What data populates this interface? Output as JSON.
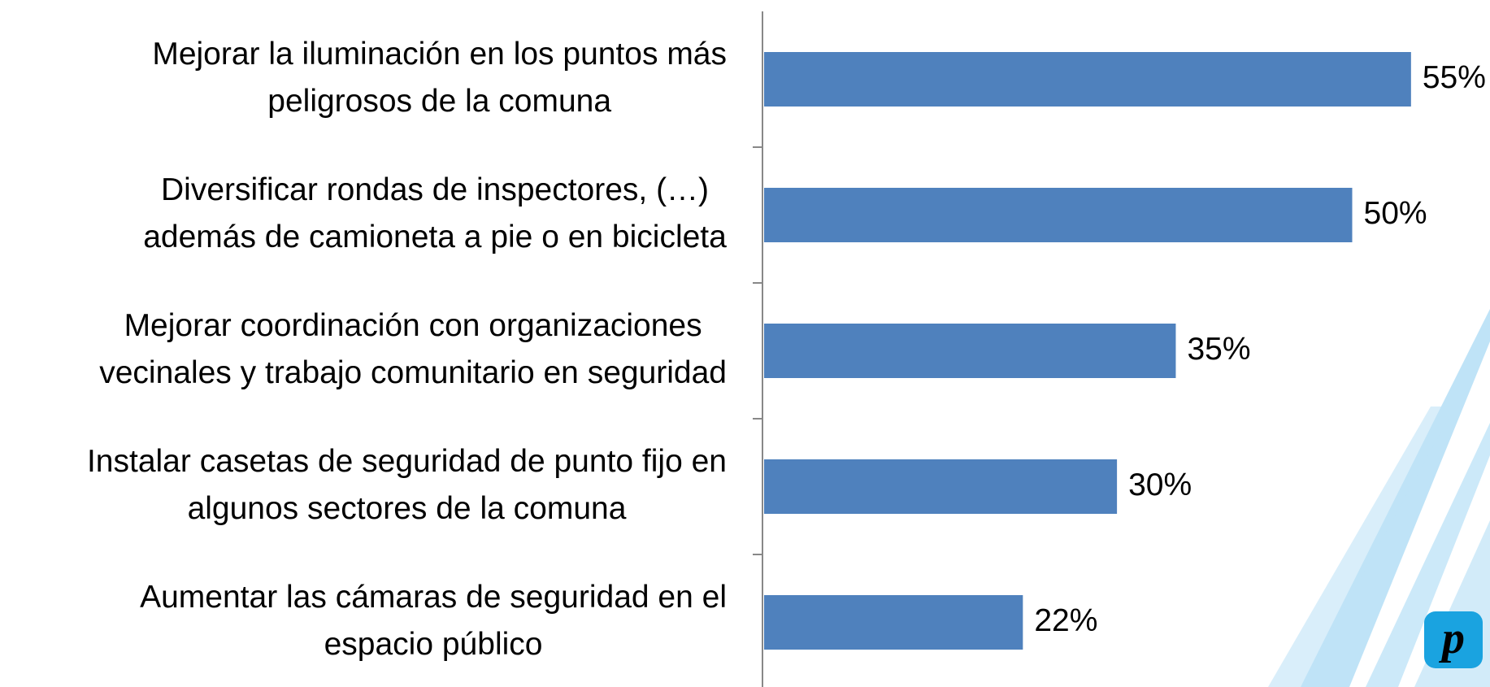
{
  "chart_data": {
    "type": "bar",
    "orientation": "horizontal",
    "categories": [
      [
        "Mejorar la iluminación en los puntos más",
        "peligrosos de la comuna"
      ],
      [
        "Diversificar rondas de inspectores, (…)",
        "además de camioneta a pie o en bicicleta"
      ],
      [
        "Mejorar  coordinación con organizaciones",
        "vecinales y trabajo comunitario en seguridad"
      ],
      [
        "Instalar casetas de seguridad de punto fijo en",
        "algunos sectores de la comuna"
      ],
      [
        "Aumentar las cámaras de seguridad en el",
        "espacio público"
      ]
    ],
    "values": [
      55,
      50,
      35,
      30,
      22
    ],
    "value_labels": [
      "55%",
      "50%",
      "35%",
      "30%",
      "22%"
    ],
    "color": "#4f81bd"
  }
}
